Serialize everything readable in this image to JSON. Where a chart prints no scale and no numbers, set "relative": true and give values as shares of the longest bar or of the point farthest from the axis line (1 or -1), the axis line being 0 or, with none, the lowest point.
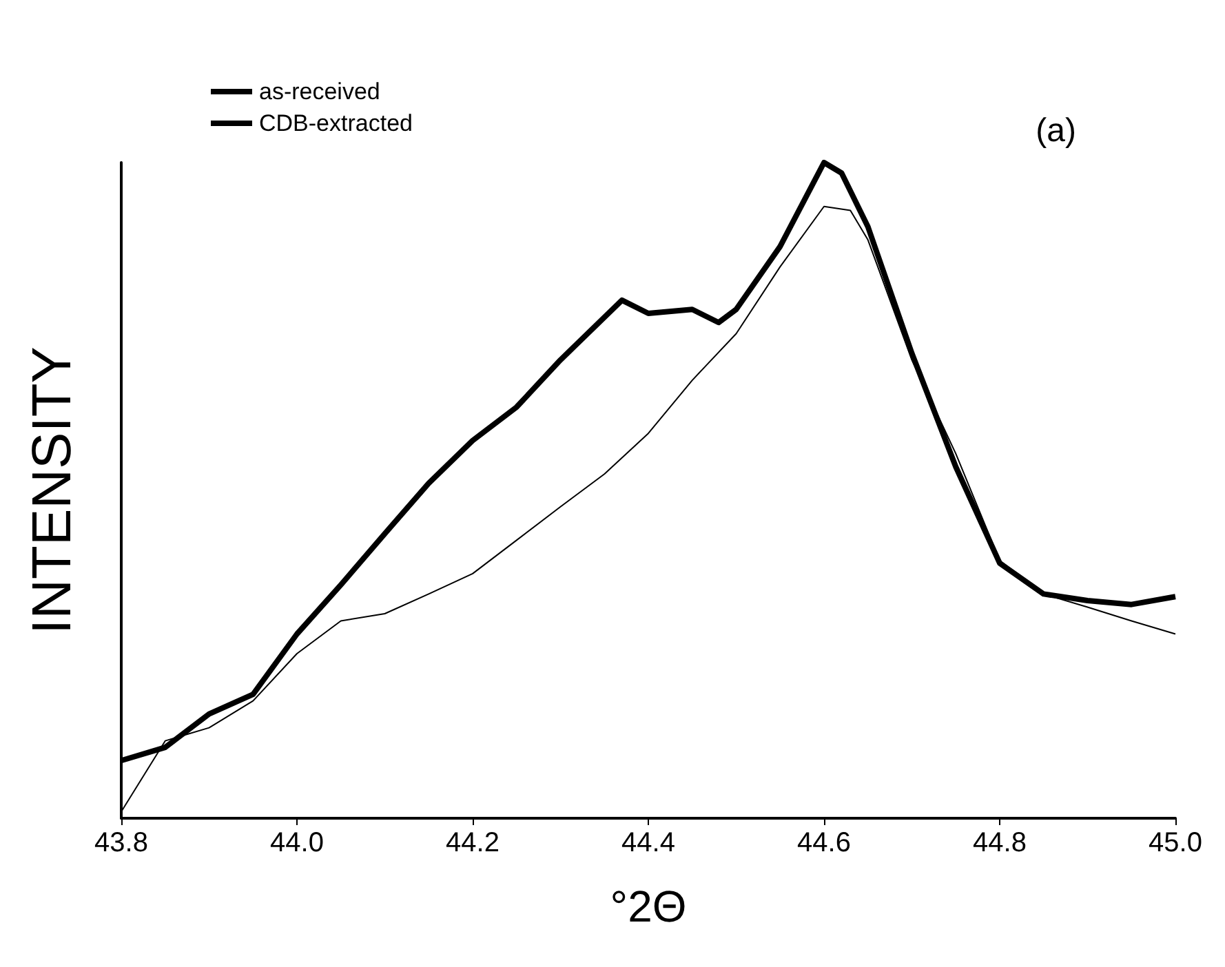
{
  "chart_data": {
    "type": "line",
    "relative": true,
    "xlabel": "°2Θ",
    "ylabel": "INTENSITY",
    "annotations": [
      "(a)"
    ],
    "xlim": [
      43.8,
      45.0
    ],
    "xticks": [
      43.8,
      {
        "value": 44,
        "label": "44.0"
      },
      44.2,
      44.4,
      44.6,
      44.8,
      {
        "value": 45,
        "label": "45.0"
      }
    ],
    "legend": "top left",
    "grid": false,
    "marker": "none",
    "line_style": "solid",
    "series": [
      {
        "name": "as-received",
        "color": "#000000",
        "x": [
          43.8,
          43.85,
          43.9,
          43.95,
          44.0,
          44.05,
          44.1,
          44.15,
          44.2,
          44.25,
          44.3,
          44.35,
          44.37,
          44.4,
          44.45,
          44.48,
          44.5,
          44.55,
          44.6,
          44.62,
          44.65,
          44.7,
          44.75,
          44.8,
          44.85,
          44.9,
          44.95,
          45.0
        ],
        "values": [
          0.088,
          0.108,
          0.159,
          0.189,
          0.281,
          0.356,
          0.434,
          0.511,
          0.576,
          0.627,
          0.699,
          0.764,
          0.79,
          0.77,
          0.776,
          0.756,
          0.776,
          0.872,
          1.0,
          0.984,
          0.902,
          0.709,
          0.536,
          0.389,
          0.342,
          0.332,
          0.326,
          0.338
        ]
      },
      {
        "name": "CDB-extracted",
        "color": "#000000",
        "x": [
          43.8,
          43.85,
          43.9,
          43.95,
          44.0,
          44.05,
          44.1,
          44.15,
          44.2,
          44.25,
          44.3,
          44.35,
          44.4,
          44.45,
          44.5,
          44.55,
          44.6,
          44.63,
          44.65,
          44.7,
          44.75,
          44.8,
          44.85,
          44.9,
          44.95,
          45.0
        ],
        "values": [
          0.01,
          0.118,
          0.138,
          0.179,
          0.251,
          0.301,
          0.312,
          0.342,
          0.373,
          0.424,
          0.475,
          0.525,
          0.587,
          0.668,
          0.739,
          0.841,
          0.933,
          0.927,
          0.882,
          0.699,
          0.556,
          0.393,
          0.342,
          0.322,
          0.301,
          0.281
        ]
      }
    ]
  }
}
